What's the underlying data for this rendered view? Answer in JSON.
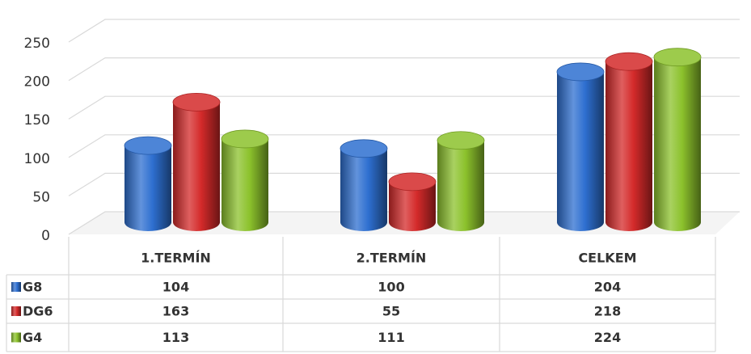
{
  "chart_data": {
    "type": "bar3d",
    "categories": [
      "1.TERMÍN",
      "2.TERMÍN",
      "CELKEM"
    ],
    "series": [
      {
        "name": "G8",
        "color": "#2e6fd0",
        "values": [
          104,
          100,
          204
        ]
      },
      {
        "name": "DG6",
        "color": "#d42a2a",
        "values": [
          163,
          55,
          218
        ]
      },
      {
        "name": "G4",
        "color": "#8cc22c",
        "values": [
          113,
          111,
          224
        ]
      }
    ],
    "ylim": [
      0,
      250
    ],
    "yticks": [
      0,
      50,
      100,
      150,
      200,
      250
    ],
    "grid": true,
    "legend": "table"
  }
}
